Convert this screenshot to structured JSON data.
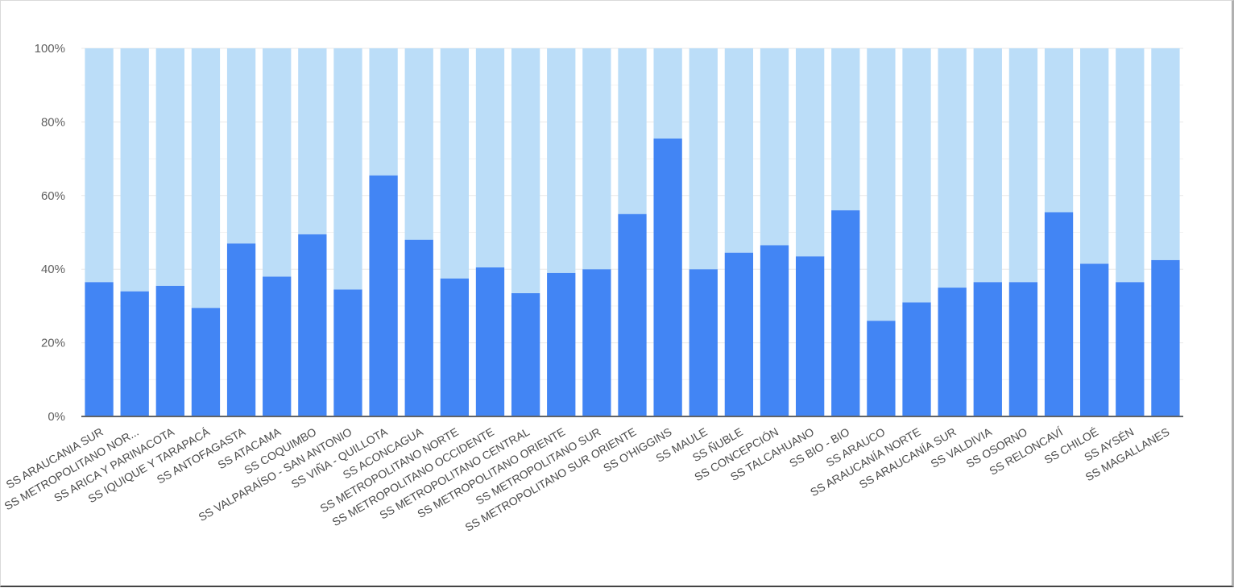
{
  "chart_data": {
    "type": "bar",
    "stacked": true,
    "percent_stacked": true,
    "grid": true,
    "legend": "none",
    "colors": {
      "dark": "#4285f4",
      "light": "#bbddf8",
      "axis": "#5f6368",
      "grid": "#e8e8e8"
    },
    "y_ticks": [
      "0%",
      "20%",
      "40%",
      "60%",
      "80%",
      "100%"
    ],
    "ylim": [
      0,
      100
    ],
    "categories": [
      "SS ARAUCANIA SUR",
      "SS METROPOLITANO NOR...",
      "SS ARICA Y PARINACOTA",
      "SS IQUIQUE Y TARAPACÁ",
      "SS ANTOFAGASTA",
      "SS ATACAMA",
      "SS COQUIMBO",
      "SS VALPARAÍSO - SAN ANTONIO",
      "SS VIÑA - QUILLOTA",
      "SS ACONCAGUA",
      "SS METROPOLITANO NORTE",
      "SS METROPOLITANO OCCIDENTE",
      "SS METROPOLITANO CENTRAL",
      "SS METROPOLITANO ORIENTE",
      "SS METROPOLITANO SUR",
      "SS METROPOLITANO SUR ORIENTE",
      "SS O'HIGGINS",
      "SS MAULE",
      "SS ÑUBLE",
      "SS CONCEPCIÓN",
      "SS TALCAHUANO",
      "SS BIO - BIO",
      "SS ARAUCO",
      "SS ARAUCANÍA NORTE",
      "SS ARAUCANÍA SUR",
      "SS VALDIVIA",
      "SS OSORNO",
      "SS RELONCAVÍ",
      "SS CHILOÉ",
      "SS AYSÉN",
      "SS MAGALLANES"
    ],
    "series": [
      {
        "values": [
          36.5,
          34,
          35.5,
          29.5,
          47,
          38,
          49.5,
          34.5,
          65.5,
          48,
          37.5,
          40.5,
          33.5,
          39,
          40,
          55,
          75.5,
          40,
          44.5,
          46.5,
          43.5,
          56,
          26,
          31,
          35,
          36.5,
          36.5,
          55.5,
          41.5,
          36.5,
          42.5
        ]
      },
      {
        "values": [
          63.5,
          66,
          64.5,
          70.5,
          53,
          62,
          50.5,
          65.5,
          34.5,
          52,
          62.5,
          59.5,
          66.5,
          61,
          60,
          45,
          24.5,
          60,
          55.5,
          53.5,
          56.5,
          44,
          74,
          69,
          65,
          63.5,
          63.5,
          44.5,
          58.5,
          63.5,
          57.5
        ]
      }
    ]
  }
}
